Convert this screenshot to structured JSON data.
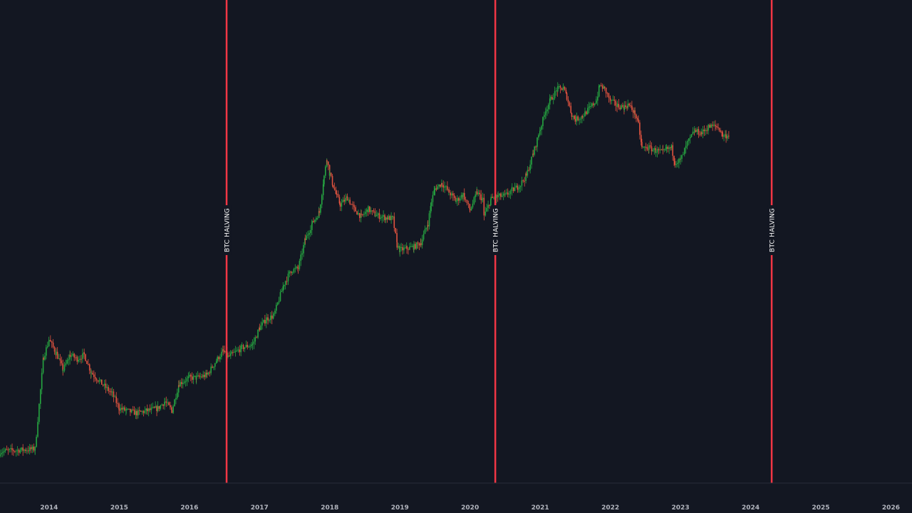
{
  "colors": {
    "background": "#131722",
    "up_candle": "#26a641",
    "down_candle": "#e0533f",
    "halving_line": "#f23645",
    "axis_text": "#b2b5be",
    "axis_line": "#2a2e39"
  },
  "chart_data": {
    "type": "candlestick",
    "title": "",
    "xlabel": "",
    "ylabel": "",
    "y_scale": "log",
    "x_tick_labels": [
      "2014",
      "2015",
      "2016",
      "2017",
      "2018",
      "2019",
      "2020",
      "2021",
      "2022",
      "2023",
      "2024",
      "2025",
      "2026"
    ],
    "xlim": [
      2013.3,
      2026.3
    ],
    "ylim": [
      70,
      260000
    ],
    "grid": false,
    "series": [
      {
        "name": "",
        "x": [
          2013.3,
          2013.8,
          2013.92,
          2014.0,
          2014.1,
          2014.2,
          2014.3,
          2014.4,
          2014.5,
          2014.6,
          2014.75,
          2014.9,
          2015.0,
          2015.1,
          2015.25,
          2015.4,
          2015.55,
          2015.65,
          2015.75,
          2015.85,
          2016.0,
          2016.1,
          2016.25,
          2016.4,
          2016.48,
          2016.55,
          2016.6,
          2016.75,
          2016.9,
          2017.0,
          2017.1,
          2017.2,
          2017.35,
          2017.45,
          2017.55,
          2017.65,
          2017.75,
          2017.85,
          2017.92,
          2017.96,
          2018.0,
          2018.05,
          2018.1,
          2018.15,
          2018.25,
          2018.35,
          2018.45,
          2018.55,
          2018.65,
          2018.8,
          2018.9,
          2018.96,
          2019.0,
          2019.1,
          2019.2,
          2019.3,
          2019.4,
          2019.45,
          2019.5,
          2019.6,
          2019.7,
          2019.8,
          2019.9,
          2020.0,
          2020.1,
          2020.18,
          2020.2,
          2020.3,
          2020.4,
          2020.5,
          2020.6,
          2020.7,
          2020.8,
          2020.9,
          2021.0,
          2021.08,
          2021.15,
          2021.25,
          2021.33,
          2021.38,
          2021.45,
          2021.5,
          2021.6,
          2021.7,
          2021.8,
          2021.85,
          2021.92,
          2022.0,
          2022.1,
          2022.2,
          2022.25,
          2022.35,
          2022.4,
          2022.45,
          2022.55,
          2022.65,
          2022.75,
          2022.8,
          2022.87,
          2022.92,
          2023.0,
          2023.1,
          2023.2,
          2023.3,
          2023.4,
          2023.5,
          2023.55,
          2023.6,
          2023.65,
          2023.7
        ],
        "values": [
          120,
          125,
          600,
          800,
          640,
          480,
          620,
          580,
          620,
          460,
          380,
          320,
          250,
          240,
          230,
          240,
          250,
          280,
          240,
          380,
          420,
          420,
          440,
          580,
          660,
          600,
          620,
          700,
          740,
          980,
          1150,
          1200,
          2100,
          2600,
          2700,
          4400,
          5800,
          7000,
          13000,
          17500,
          13500,
          11000,
          9200,
          8000,
          9000,
          7400,
          6500,
          7400,
          6700,
          6400,
          6300,
          4000,
          3700,
          3800,
          3900,
          4200,
          5800,
          8500,
          10500,
          11500,
          9900,
          8500,
          9500,
          7300,
          9800,
          8700,
          6600,
          8800,
          9200,
          9300,
          10200,
          11000,
          13000,
          19000,
          29000,
          40000,
          48000,
          57000,
          58000,
          50000,
          37000,
          34000,
          36000,
          41000,
          47000,
          61000,
          57000,
          47000,
          43000,
          42000,
          44000,
          38000,
          31000,
          21000,
          21000,
          20000,
          19500,
          20500,
          21000,
          16500,
          17000,
          22800,
          28000,
          27000,
          30000,
          30500,
          29300,
          26000,
          25800,
          26500
        ]
      }
    ],
    "annotations": [
      {
        "x": 2016.53,
        "label": "BTC HALVING"
      },
      {
        "x": 2020.36,
        "label": "BTC HALVING"
      },
      {
        "x": 2024.3,
        "label": "BTC HALVING"
      }
    ]
  }
}
